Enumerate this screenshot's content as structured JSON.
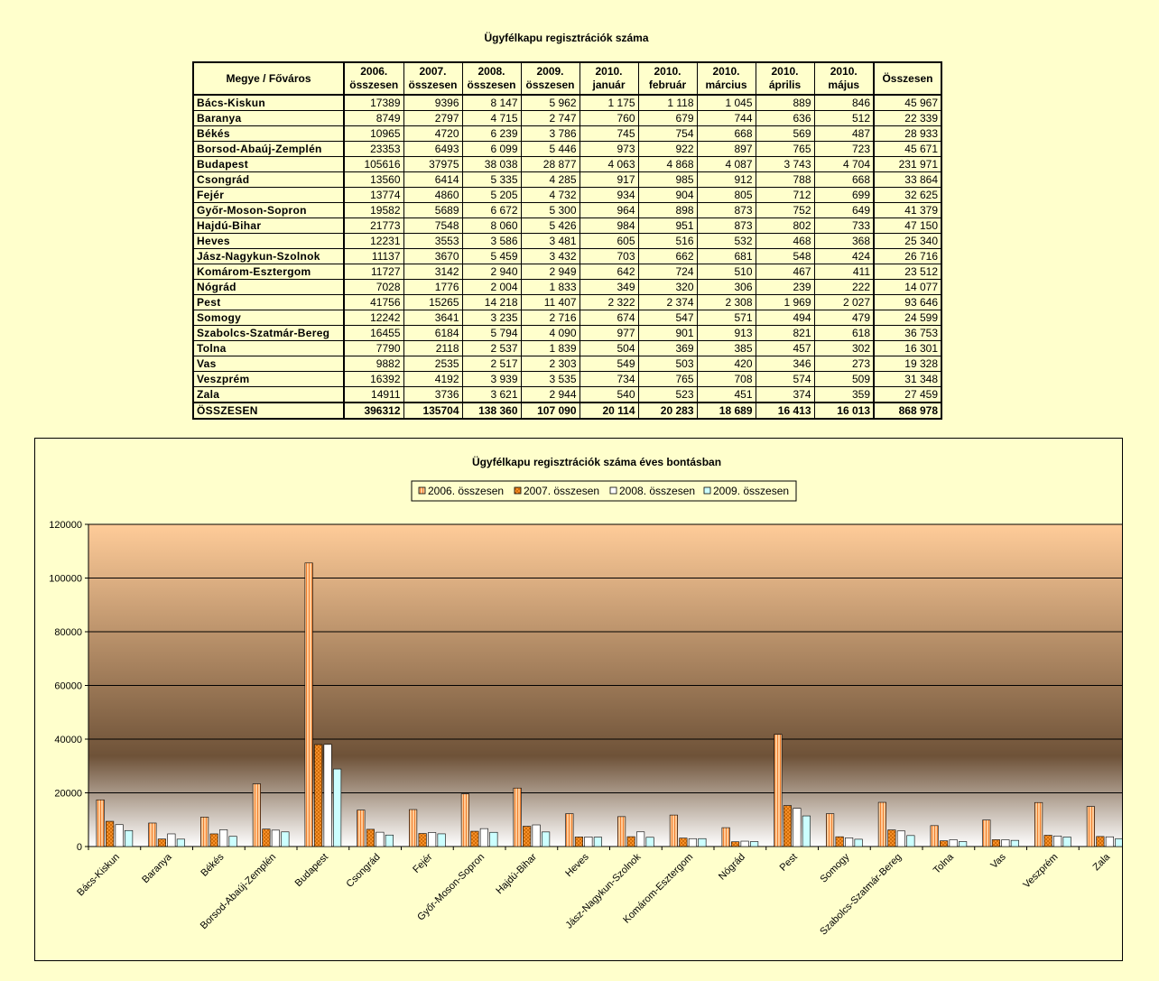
{
  "table": {
    "title": "Ügyfélkapu regisztrációk száma",
    "headers": [
      [
        "Megye / Főváros"
      ],
      [
        "2006.",
        "összesen"
      ],
      [
        "2007.",
        "összesen"
      ],
      [
        "2008.",
        "összesen"
      ],
      [
        "2009.",
        "összesen"
      ],
      [
        "2010.",
        "január"
      ],
      [
        "2010.",
        "február"
      ],
      [
        "2010.",
        "március"
      ],
      [
        "2010.",
        "április"
      ],
      [
        "2010.",
        "május"
      ],
      [
        "Összesen"
      ]
    ],
    "rows": [
      [
        "Bács-Kiskun",
        "17389",
        "9396",
        "8 147",
        "5 962",
        "1 175",
        "1 118",
        "1 045",
        "889",
        "846",
        "45 967"
      ],
      [
        "Baranya",
        "8749",
        "2797",
        "4 715",
        "2 747",
        "760",
        "679",
        "744",
        "636",
        "512",
        "22 339"
      ],
      [
        "Békés",
        "10965",
        "4720",
        "6 239",
        "3 786",
        "745",
        "754",
        "668",
        "569",
        "487",
        "28 933"
      ],
      [
        "Borsod-Abaúj-Zemplén",
        "23353",
        "6493",
        "6 099",
        "5 446",
        "973",
        "922",
        "897",
        "765",
        "723",
        "45 671"
      ],
      [
        "Budapest",
        "105616",
        "37975",
        "38 038",
        "28 877",
        "4 063",
        "4 868",
        "4 087",
        "3 743",
        "4 704",
        "231 971"
      ],
      [
        "Csongrád",
        "13560",
        "6414",
        "5 335",
        "4 285",
        "917",
        "985",
        "912",
        "788",
        "668",
        "33 864"
      ],
      [
        "Fejér",
        "13774",
        "4860",
        "5 205",
        "4 732",
        "934",
        "904",
        "805",
        "712",
        "699",
        "32 625"
      ],
      [
        "Győr-Moson-Sopron",
        "19582",
        "5689",
        "6 672",
        "5 300",
        "964",
        "898",
        "873",
        "752",
        "649",
        "41 379"
      ],
      [
        "Hajdú-Bihar",
        "21773",
        "7548",
        "8 060",
        "5 426",
        "984",
        "951",
        "873",
        "802",
        "733",
        "47 150"
      ],
      [
        "Heves",
        "12231",
        "3553",
        "3 586",
        "3 481",
        "605",
        "516",
        "532",
        "468",
        "368",
        "25 340"
      ],
      [
        "Jász-Nagykun-Szolnok",
        "11137",
        "3670",
        "5 459",
        "3 432",
        "703",
        "662",
        "681",
        "548",
        "424",
        "26 716"
      ],
      [
        "Komárom-Esztergom",
        "11727",
        "3142",
        "2 940",
        "2 949",
        "642",
        "724",
        "510",
        "467",
        "411",
        "23 512"
      ],
      [
        "Nógrád",
        "7028",
        "1776",
        "2 004",
        "1 833",
        "349",
        "320",
        "306",
        "239",
        "222",
        "14 077"
      ],
      [
        "Pest",
        "41756",
        "15265",
        "14 218",
        "11 407",
        "2 322",
        "2 374",
        "2 308",
        "1 969",
        "2 027",
        "93 646"
      ],
      [
        "Somogy",
        "12242",
        "3641",
        "3 235",
        "2 716",
        "674",
        "547",
        "571",
        "494",
        "479",
        "24 599"
      ],
      [
        "Szabolcs-Szatmár-Bereg",
        "16455",
        "6184",
        "5 794",
        "4 090",
        "977",
        "901",
        "913",
        "821",
        "618",
        "36 753"
      ],
      [
        "Tolna",
        "7790",
        "2118",
        "2 537",
        "1 839",
        "504",
        "369",
        "385",
        "457",
        "302",
        "16 301"
      ],
      [
        "Vas",
        "9882",
        "2535",
        "2 517",
        "2 303",
        "549",
        "503",
        "420",
        "346",
        "273",
        "19 328"
      ],
      [
        "Veszprém",
        "16392",
        "4192",
        "3 939",
        "3 535",
        "734",
        "765",
        "708",
        "574",
        "509",
        "31 348"
      ],
      [
        "Zala",
        "14911",
        "3736",
        "3 621",
        "2 944",
        "540",
        "523",
        "451",
        "374",
        "359",
        "27 459"
      ]
    ],
    "total": [
      "ÖSSZESEN",
      "396312",
      "135704",
      "138 360",
      "107 090",
      "20 114",
      "20 283",
      "18 689",
      "16 413",
      "16 013",
      "868 978"
    ]
  },
  "chart_data": {
    "type": "bar",
    "title": "Ügyfélkapu regisztrációk száma éves bontásban",
    "legend_position": "top",
    "grid": true,
    "ylim": [
      0,
      120000
    ],
    "yticks": [
      "0",
      "20000",
      "40000",
      "60000",
      "80000",
      "100000",
      "120000"
    ],
    "categories": [
      "Bács-Kiskun",
      "Baranya",
      "Békés",
      "Borsod-Abaúj-Zemplén",
      "Budapest",
      "Csongrád",
      "Fejér",
      "Győr-Moson-Sopron",
      "Hajdú-Bihar",
      "Heves",
      "Jász-Nagykun-Szolnok",
      "Komárom-Esztergom",
      "Nógrád",
      "Pest",
      "Somogy",
      "Szabolcs-Szatmár-Bereg",
      "Tolna",
      "Vas",
      "Veszprém",
      "Zala"
    ],
    "series": [
      {
        "name": "2006. összesen",
        "color": "#FFCC99",
        "pattern": "vertical-stripes",
        "values": [
          17389,
          8749,
          10965,
          23353,
          105616,
          13560,
          13774,
          19582,
          21773,
          12231,
          11137,
          11727,
          7028,
          41756,
          12242,
          16455,
          7790,
          9882,
          16392,
          14911
        ]
      },
      {
        "name": "2007. összesen",
        "color": "#FF9933",
        "pattern": "crosshatch",
        "values": [
          9396,
          2797,
          4720,
          6493,
          37975,
          6414,
          4860,
          5689,
          7548,
          3553,
          3670,
          3142,
          1776,
          15265,
          3641,
          6184,
          2118,
          2535,
          4192,
          3736
        ]
      },
      {
        "name": "2008. összesen",
        "color": "#FFFFFF",
        "pattern": "solid",
        "values": [
          8147,
          4715,
          6239,
          6099,
          38038,
          5335,
          5205,
          6672,
          8060,
          3586,
          5459,
          2940,
          2004,
          14218,
          3235,
          5794,
          2537,
          2517,
          3939,
          3621
        ]
      },
      {
        "name": "2009. összesen",
        "color": "#CCFFFF",
        "pattern": "solid",
        "values": [
          5962,
          2747,
          3786,
          5446,
          28877,
          4285,
          4732,
          5300,
          5426,
          3481,
          3432,
          2949,
          1833,
          11407,
          2716,
          4090,
          1839,
          2303,
          3535,
          2944
        ]
      }
    ],
    "plot_background": {
      "top": "#FFCC99",
      "bottom": "#FFFFFF",
      "style": "gradient"
    }
  }
}
